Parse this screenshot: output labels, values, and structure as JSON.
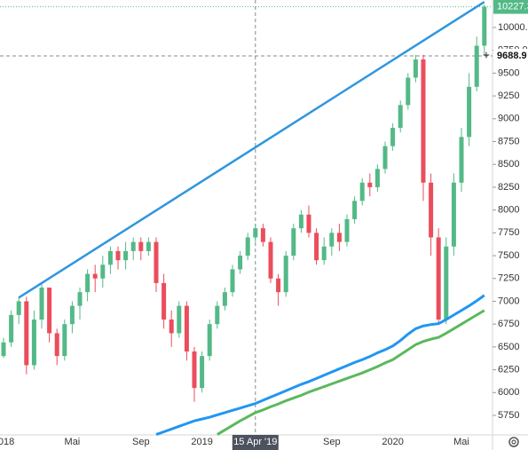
{
  "chart_data": {
    "type": "candlestick",
    "categories": [
      "2018",
      null,
      null,
      null,
      null,
      null,
      null,
      null,
      null,
      "Mai",
      null,
      null,
      null,
      null,
      null,
      null,
      null,
      null,
      "Sep",
      null,
      null,
      null,
      null,
      null,
      null,
      null,
      "2019",
      null,
      null,
      null,
      null,
      null,
      null,
      "15 Apr '19",
      null,
      null,
      null,
      null,
      null,
      null,
      null,
      null,
      null,
      "Sep",
      null,
      null,
      null,
      null,
      null,
      null,
      null,
      "2020",
      null,
      null,
      null,
      null,
      null,
      null,
      null,
      null,
      "Mai",
      null,
      null,
      null
    ],
    "open": [
      6400,
      6550,
      6850,
      7000,
      6300,
      6800,
      7150,
      6650,
      6400,
      6750,
      6950,
      7100,
      7300,
      7250,
      7400,
      7550,
      7450,
      7550,
      7650,
      7550,
      7650,
      7200,
      6800,
      6650,
      6950,
      6450,
      6050,
      6400,
      6750,
      6950,
      7100,
      7350,
      7500,
      7700,
      7800,
      7650,
      7250,
      7100,
      7500,
      7800,
      7950,
      7750,
      7450,
      7600,
      7750,
      7650,
      7900,
      8100,
      8300,
      8250,
      8450,
      8700,
      8900,
      9150,
      9450,
      9650,
      8300,
      7700,
      6800,
      7600,
      8300,
      8800,
      9350,
      9800
    ],
    "high": [
      6600,
      6900,
      7050,
      7050,
      6900,
      7200,
      7150,
      6700,
      6800,
      7000,
      7150,
      7350,
      7400,
      7500,
      7600,
      7600,
      7650,
      7700,
      7700,
      7700,
      7700,
      7300,
      6900,
      7000,
      7000,
      6500,
      6450,
      6800,
      7000,
      7150,
      7400,
      7550,
      7750,
      7850,
      7850,
      7700,
      7300,
      7550,
      7850,
      8000,
      8050,
      7800,
      7700,
      7800,
      7850,
      7950,
      8150,
      8350,
      8400,
      8500,
      8750,
      8950,
      9200,
      9500,
      9700,
      9700,
      8400,
      7800,
      7700,
      8400,
      8900,
      9500,
      9900,
      10250
    ],
    "low": [
      6380,
      6500,
      6750,
      6200,
      6250,
      6700,
      6550,
      6300,
      6350,
      6650,
      6800,
      7000,
      7100,
      7150,
      7300,
      7350,
      7350,
      7450,
      7450,
      7500,
      7100,
      6700,
      6500,
      6600,
      6350,
      5900,
      6000,
      6350,
      6700,
      6900,
      7050,
      7300,
      7450,
      7650,
      7600,
      7200,
      6950,
      7050,
      7450,
      7750,
      7700,
      7400,
      7400,
      7500,
      7550,
      7600,
      7850,
      8050,
      8150,
      8200,
      8400,
      8650,
      8850,
      9100,
      9400,
      8100,
      7500,
      6750,
      6750,
      7500,
      8200,
      8700,
      9300,
      9700
    ],
    "close": [
      6550,
      6850,
      7000,
      6300,
      6800,
      7150,
      6650,
      6400,
      6750,
      6950,
      7100,
      7300,
      7250,
      7400,
      7550,
      7450,
      7550,
      7650,
      7550,
      7650,
      7200,
      6800,
      6650,
      6950,
      6450,
      6050,
      6400,
      6750,
      6950,
      7100,
      7350,
      7500,
      7700,
      7800,
      7650,
      7250,
      7100,
      7500,
      7800,
      7950,
      7750,
      7450,
      7600,
      7750,
      7650,
      7900,
      8100,
      8300,
      8250,
      8450,
      8700,
      8900,
      9150,
      9450,
      9650,
      8300,
      7700,
      6800,
      7600,
      8300,
      8800,
      9350,
      9800,
      10227.3
    ],
    "up_color": "#53b987",
    "down_color": "#eb4d5c",
    "overlays": [
      {
        "color": "#2196f3",
        "values": [
          null,
          null,
          null,
          null,
          null,
          null,
          null,
          null,
          null,
          null,
          null,
          null,
          null,
          null,
          null,
          null,
          null,
          null,
          null,
          null,
          5540,
          5570,
          5600,
          5630,
          5660,
          5690,
          5710,
          5730,
          5755,
          5780,
          5805,
          5830,
          5855,
          5880,
          5915,
          5950,
          5985,
          6020,
          6055,
          6090,
          6120,
          6155,
          6190,
          6225,
          6260,
          6295,
          6330,
          6360,
          6395,
          6435,
          6470,
          6510,
          6570,
          6640,
          6700,
          6730,
          6745,
          6755,
          6800,
          6850,
          6900,
          6950,
          7005,
          7065
        ]
      },
      {
        "color": "#5cb85c",
        "values": [
          null,
          null,
          null,
          null,
          null,
          null,
          null,
          null,
          null,
          null,
          null,
          null,
          null,
          null,
          null,
          null,
          null,
          null,
          null,
          null,
          null,
          null,
          null,
          null,
          null,
          null,
          null,
          null,
          5540,
          5590,
          5640,
          5690,
          5735,
          5780,
          5810,
          5845,
          5875,
          5910,
          5940,
          5970,
          6005,
          6035,
          6065,
          6095,
          6125,
          6155,
          6185,
          6215,
          6250,
          6285,
          6325,
          6360,
          6415,
          6470,
          6525,
          6560,
          6585,
          6605,
          6650,
          6700,
          6750,
          6800,
          6850,
          6900
        ]
      }
    ],
    "trend_line": {
      "color": "#2f96e0",
      "x": [
        2,
        63
      ],
      "values": [
        7040,
        10280
      ]
    },
    "ylim": [
      5536,
      10301
    ],
    "yticks": [
      5750,
      6000,
      6250,
      6500,
      6750,
      7000,
      7250,
      7500,
      7750,
      8000,
      8250,
      8500,
      8750,
      9000,
      9250,
      9500,
      {
        "value": 9750,
        "label": "9750.0"
      },
      {
        "value": 10000,
        "label": "10000.0"
      }
    ],
    "last_price": {
      "value": 10227.3,
      "label": "10227.3"
    },
    "crosshair": {
      "price": 9688.9,
      "price_label": "9688.9",
      "x": 33,
      "x_label": "15 Apr '19"
    }
  }
}
